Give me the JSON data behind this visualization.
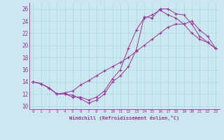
{
  "xlabel": "Windchill (Refroidissement éolien,°C)",
  "bg_color": "#cbe8f0",
  "line_color": "#993399",
  "xlim": [
    -0.5,
    23.5
  ],
  "ylim": [
    9.5,
    27.0
  ],
  "xticks": [
    0,
    1,
    2,
    3,
    4,
    5,
    6,
    7,
    8,
    9,
    10,
    11,
    12,
    13,
    14,
    15,
    16,
    17,
    18,
    19,
    20,
    21,
    22,
    23
  ],
  "yticks": [
    10,
    12,
    14,
    16,
    18,
    20,
    22,
    24,
    26
  ],
  "grid_color": "#aad8dd",
  "line1_x": [
    0,
    1,
    2,
    3,
    4,
    5,
    6,
    7,
    8,
    9,
    10,
    11,
    12,
    13,
    14,
    15,
    16,
    17,
    18,
    19,
    20,
    21,
    22,
    23
  ],
  "line1_y": [
    14.0,
    13.7,
    13.0,
    12.0,
    12.0,
    11.8,
    11.2,
    10.5,
    11.0,
    12.0,
    14.0,
    15.0,
    16.5,
    19.2,
    24.7,
    24.5,
    26.0,
    26.0,
    25.2,
    25.0,
    23.5,
    21.5,
    20.5,
    19.5
  ],
  "line2_x": [
    0,
    1,
    2,
    3,
    4,
    5,
    6,
    7,
    8,
    9,
    10,
    11,
    12,
    13,
    14,
    15,
    16,
    17,
    18,
    19,
    20,
    21,
    22,
    23
  ],
  "line2_y": [
    14.0,
    13.7,
    13.0,
    12.0,
    12.2,
    12.5,
    13.5,
    14.2,
    15.0,
    15.8,
    16.5,
    17.2,
    18.0,
    19.0,
    20.0,
    21.0,
    22.0,
    23.0,
    23.5,
    23.5,
    24.0,
    22.5,
    21.5,
    19.5
  ],
  "line3_x": [
    0,
    1,
    2,
    3,
    4,
    5,
    6,
    7,
    8,
    9,
    10,
    11,
    12,
    13,
    14,
    15,
    16,
    17,
    18,
    19,
    20,
    21,
    22,
    23
  ],
  "line3_y": [
    14.0,
    13.7,
    13.0,
    12.0,
    12.0,
    11.5,
    11.5,
    11.0,
    11.5,
    12.5,
    14.5,
    16.0,
    19.5,
    22.5,
    24.5,
    25.0,
    25.8,
    25.0,
    24.5,
    23.5,
    22.0,
    21.0,
    20.5,
    19.5
  ]
}
